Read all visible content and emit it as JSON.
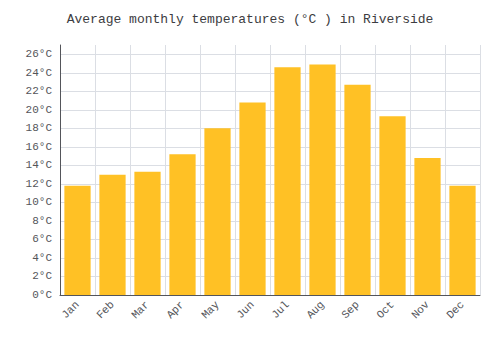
{
  "chart_data": {
    "type": "bar",
    "title": "Average monthly temperatures (°C ) in Riverside",
    "categories": [
      "Jan",
      "Feb",
      "Mar",
      "Apr",
      "May",
      "Jun",
      "Jul",
      "Aug",
      "Sep",
      "Oct",
      "Nov",
      "Dec"
    ],
    "values": [
      11.8,
      13.0,
      13.3,
      15.2,
      18.0,
      20.8,
      24.6,
      24.9,
      22.7,
      19.3,
      14.8,
      11.8
    ],
    "color": "#FFC125",
    "ylim": [
      0,
      27
    ],
    "yticks": [
      {
        "value": 0,
        "label": "0°C"
      },
      {
        "value": 2,
        "label": "2°C"
      },
      {
        "value": 4,
        "label": "4°C"
      },
      {
        "value": 6,
        "label": "6°C"
      },
      {
        "value": 8,
        "label": "8°C"
      },
      {
        "value": 10,
        "label": "10°C"
      },
      {
        "value": 12,
        "label": "12°C"
      },
      {
        "value": 14,
        "label": "14°C"
      },
      {
        "value": 16,
        "label": "16°C"
      },
      {
        "value": 18,
        "label": "18°C"
      },
      {
        "value": 20,
        "label": "20°C"
      },
      {
        "value": 22,
        "label": "22°C"
      },
      {
        "value": 24,
        "label": "24°C"
      },
      {
        "value": 26,
        "label": "26°C"
      }
    ],
    "grid": true
  }
}
